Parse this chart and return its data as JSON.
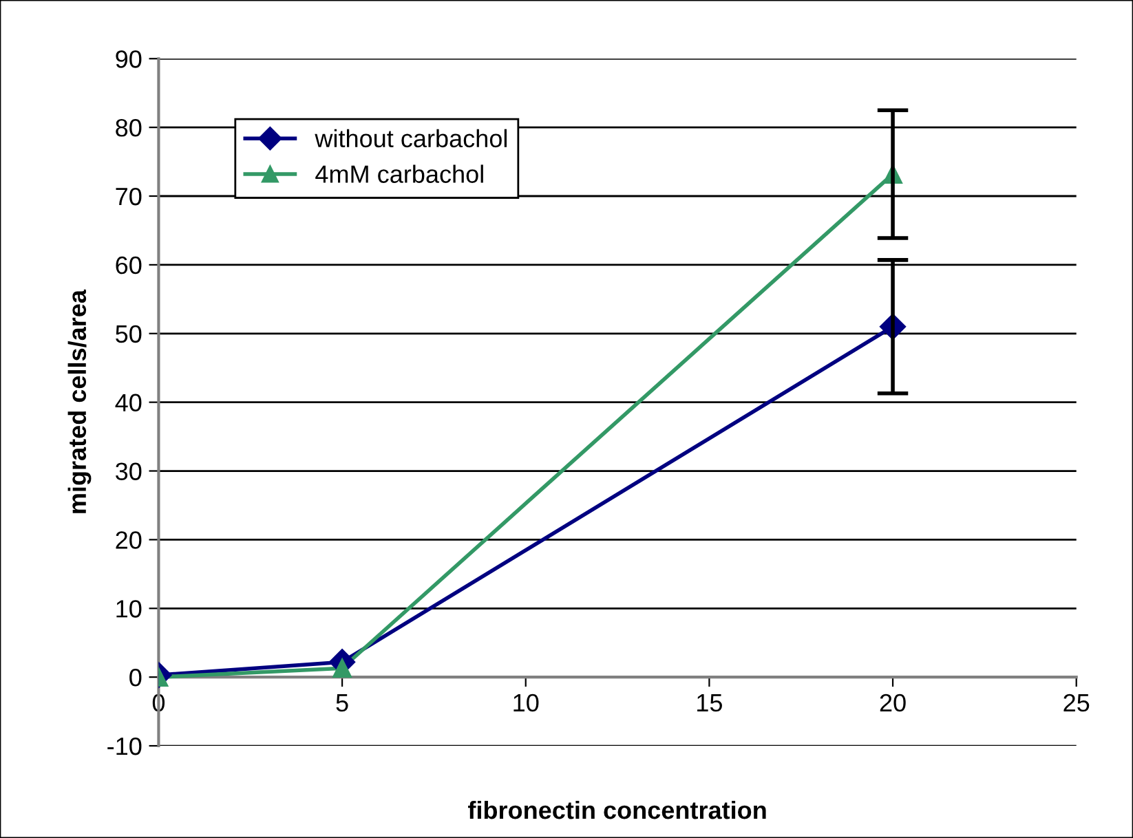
{
  "chart_data": {
    "type": "line",
    "xlabel": "fibronectin concentration",
    "ylabel": "migrated cells/area",
    "x": [
      0,
      5,
      20
    ],
    "series": [
      {
        "name": "without carbachol",
        "color": "#000080",
        "marker": "diamond",
        "values": [
          0.3,
          2.2,
          51
        ],
        "errors": [
          null,
          null,
          9.7
        ]
      },
      {
        "name": "4mM carbachol",
        "color": "#339966",
        "marker": "triangle",
        "values": [
          0,
          1.3,
          73.2
        ],
        "errors": [
          null,
          null,
          9.3
        ]
      }
    ],
    "xlim": [
      0,
      25
    ],
    "xticks": [
      0,
      5,
      10,
      15,
      20,
      25
    ],
    "ylim": [
      -10,
      90
    ],
    "yticks": [
      -10,
      0,
      10,
      20,
      30,
      40,
      50,
      60,
      70,
      80,
      90
    ],
    "grid": "y",
    "legend": "top left"
  }
}
